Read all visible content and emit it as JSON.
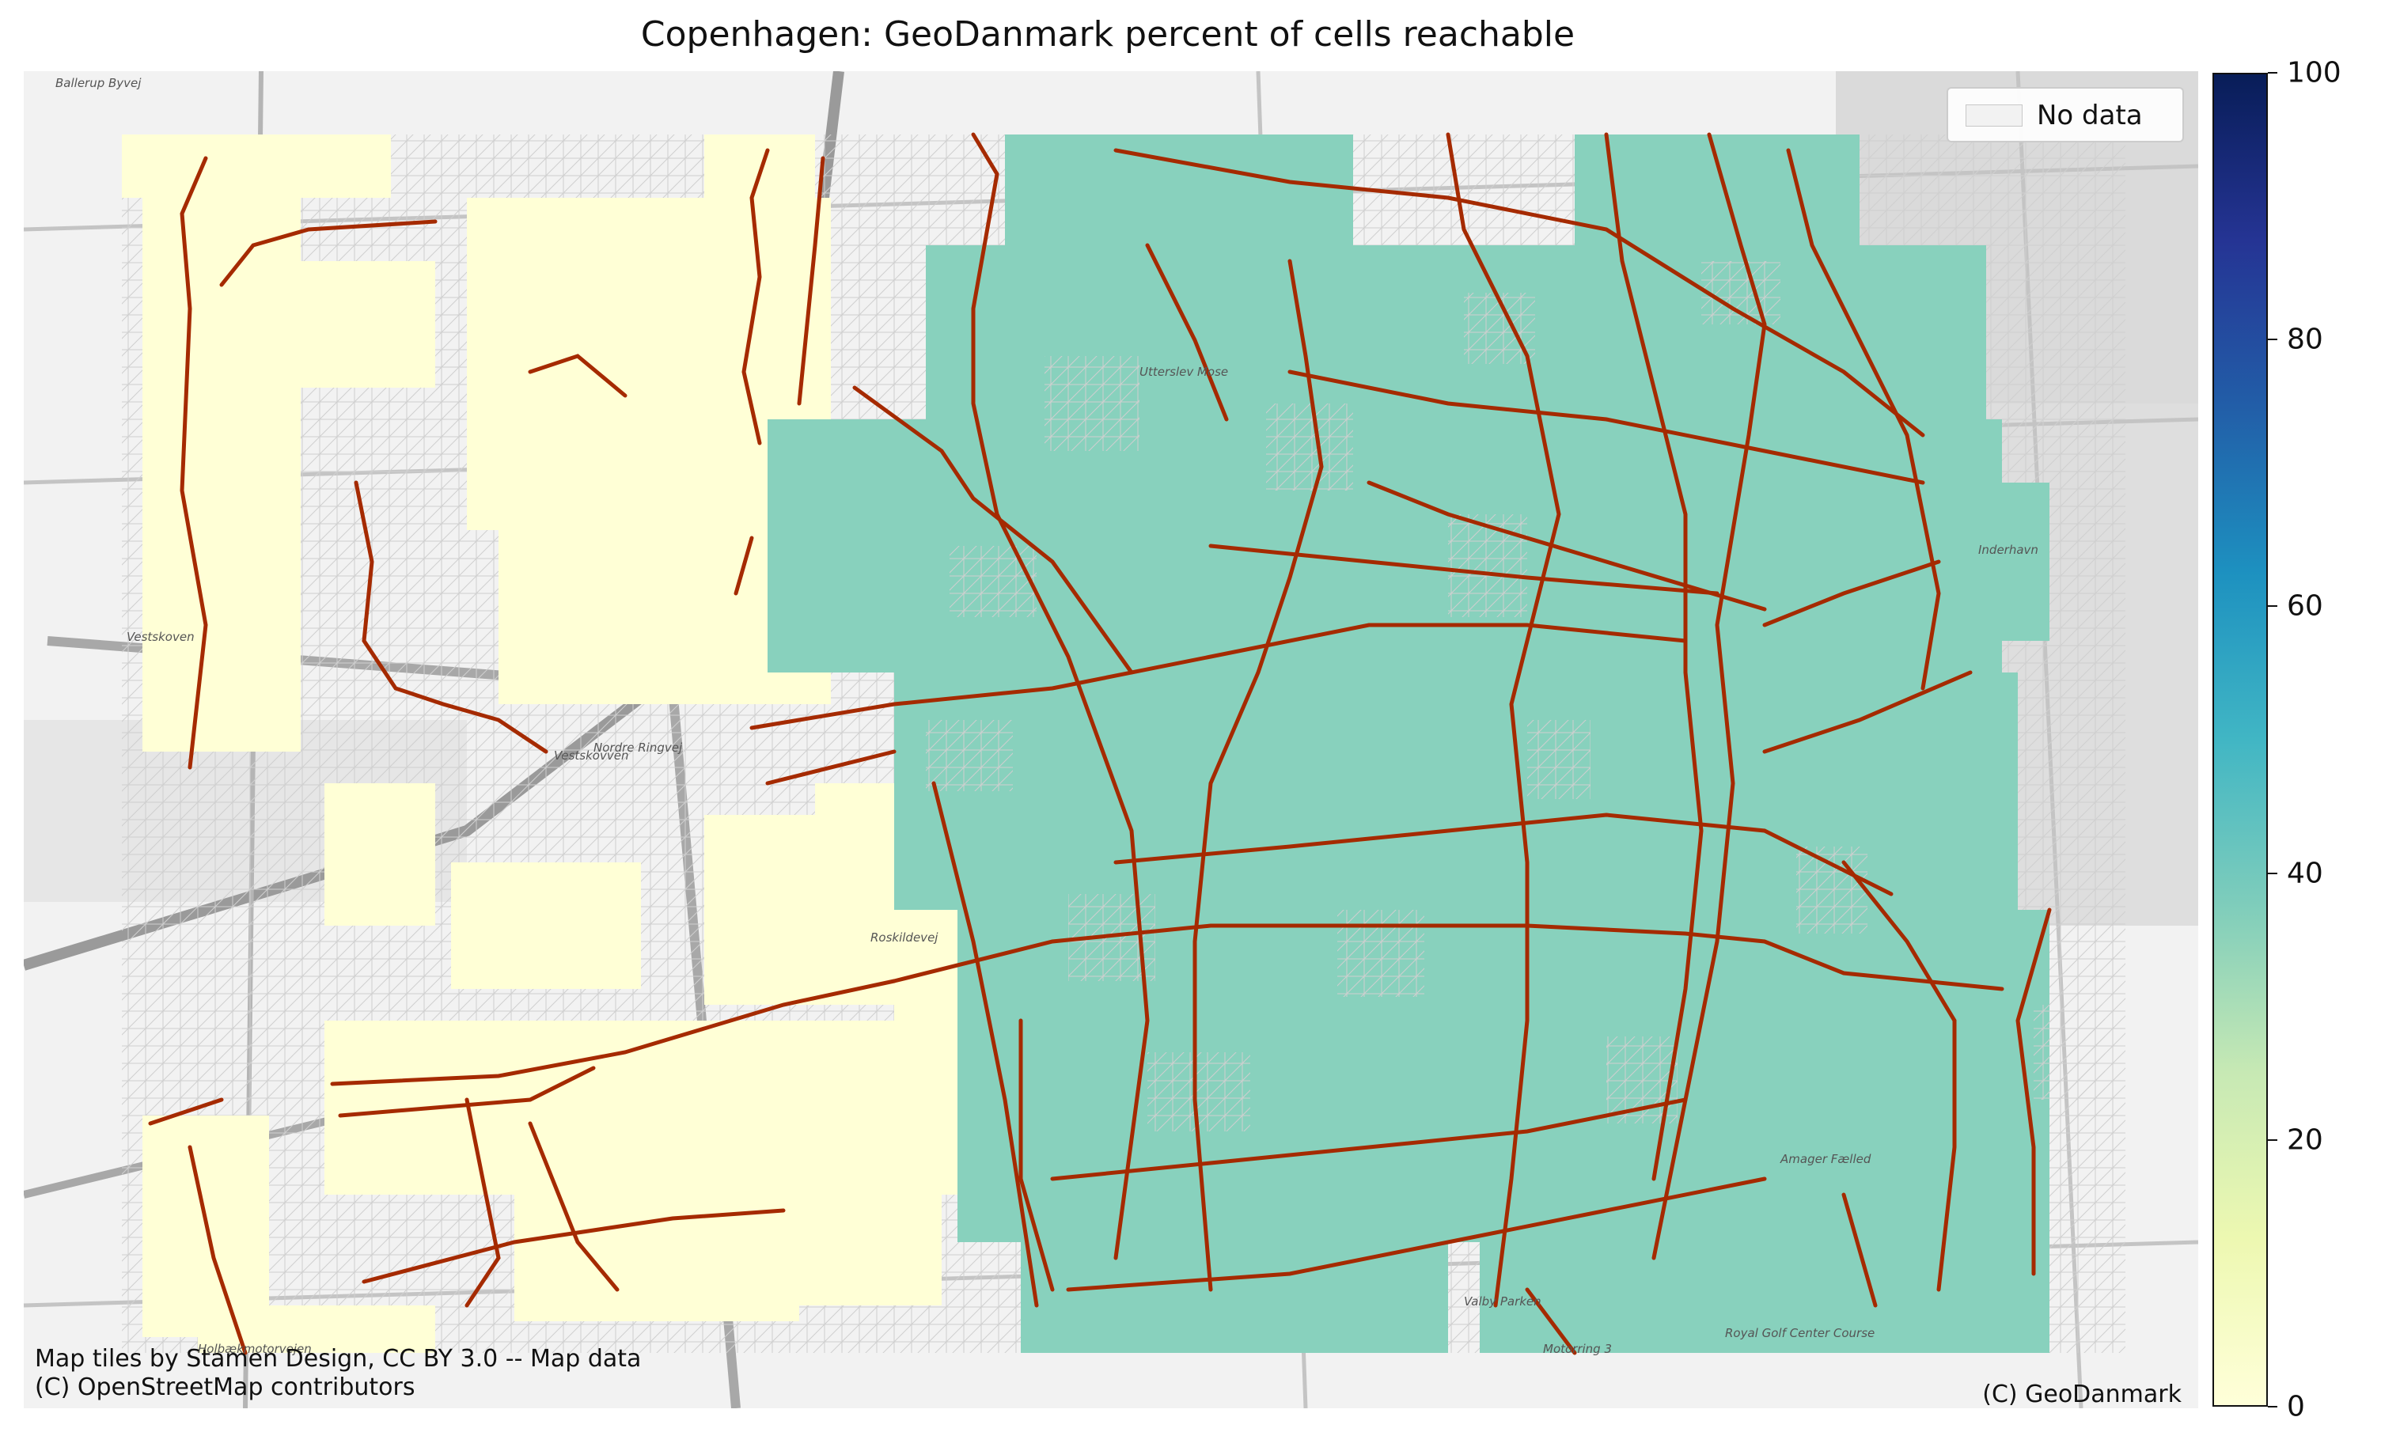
{
  "title": "Copenhagen: GeoDanmark percent of cells reachable",
  "legend": {
    "no_data_label": "No data"
  },
  "attribution": {
    "tiles_line1": "Map tiles by Stamen Design, CC BY 3.0 -- Map data",
    "tiles_line2": "(C) OpenStreetMap contributors",
    "data": "(C) GeoDanmark"
  },
  "map_labels": [
    "Utterslev Mose",
    "Vestskoven",
    "Vestskovven",
    "Inderhavn",
    "Amager Fælled",
    "Valby Parken",
    "Royal Golf Center Course",
    "Holbækmotorvejen",
    "Roskildevej",
    "Nordre Ringvej",
    "Motorring 3",
    "Ballerup Byvej"
  ],
  "colorbar": {
    "min": 0,
    "max": 100,
    "ticks": [
      "0",
      "20",
      "40",
      "60",
      "80",
      "100"
    ],
    "colormap": [
      "#ffffd9",
      "#edf8b1",
      "#c7e9b4",
      "#7fcdbb",
      "#41b6c4",
      "#1d91c0",
      "#225ea8",
      "#253494",
      "#081d58"
    ]
  },
  "colors": {
    "low_cell": "#ffffd6",
    "mid_cell": "#88d1bd",
    "network": "#a52a00",
    "no_data_hatch": "#c7c7c7"
  },
  "cells": {
    "light_zone_value": 0,
    "teal_zone_value": 37
  }
}
